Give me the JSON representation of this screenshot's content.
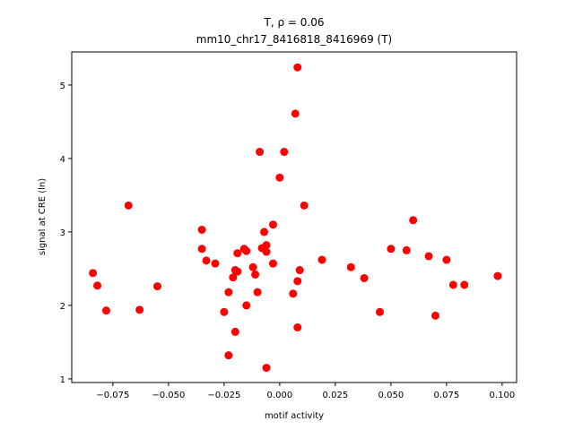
{
  "chart_data": {
    "type": "scatter",
    "title_line1": "T, ρ = 0.06",
    "title_line2": "mm10_chr17_8416818_8416969 (T)",
    "xlabel": "motif activity",
    "ylabel": "signal at CRE (ln)",
    "xlim": [
      -0.0935,
      0.1065
    ],
    "ylim": [
      0.95,
      5.45
    ],
    "x_ticks": [
      -0.075,
      -0.05,
      -0.025,
      0.0,
      0.025,
      0.05,
      0.075,
      0.1
    ],
    "x_tick_labels": [
      "−0.075",
      "−0.050",
      "−0.025",
      "0.000",
      "0.025",
      "0.050",
      "0.075",
      "0.100"
    ],
    "y_ticks": [
      1,
      2,
      3,
      4,
      5
    ],
    "y_tick_labels": [
      "1",
      "2",
      "3",
      "4",
      "5"
    ],
    "grid": false,
    "marker_color": "#ff0000",
    "points": [
      {
        "x": -0.084,
        "y": 2.44
      },
      {
        "x": -0.082,
        "y": 2.27
      },
      {
        "x": -0.078,
        "y": 1.93
      },
      {
        "x": -0.068,
        "y": 3.36
      },
      {
        "x": -0.063,
        "y": 1.94
      },
      {
        "x": -0.055,
        "y": 2.26
      },
      {
        "x": -0.035,
        "y": 3.03
      },
      {
        "x": -0.035,
        "y": 2.77
      },
      {
        "x": -0.033,
        "y": 2.61
      },
      {
        "x": -0.029,
        "y": 2.57
      },
      {
        "x": -0.025,
        "y": 1.91
      },
      {
        "x": -0.023,
        "y": 2.18
      },
      {
        "x": -0.023,
        "y": 1.32
      },
      {
        "x": -0.021,
        "y": 2.38
      },
      {
        "x": -0.02,
        "y": 1.64
      },
      {
        "x": -0.02,
        "y": 2.48
      },
      {
        "x": -0.019,
        "y": 2.71
      },
      {
        "x": -0.019,
        "y": 2.46
      },
      {
        "x": -0.016,
        "y": 2.77
      },
      {
        "x": -0.015,
        "y": 2.74
      },
      {
        "x": -0.015,
        "y": 2.0
      },
      {
        "x": -0.012,
        "y": 2.52
      },
      {
        "x": -0.011,
        "y": 2.42
      },
      {
        "x": -0.01,
        "y": 2.18
      },
      {
        "x": -0.009,
        "y": 4.09
      },
      {
        "x": -0.008,
        "y": 2.78
      },
      {
        "x": -0.007,
        "y": 3.0
      },
      {
        "x": -0.006,
        "y": 2.82
      },
      {
        "x": -0.006,
        "y": 2.73
      },
      {
        "x": -0.006,
        "y": 1.15
      },
      {
        "x": -0.003,
        "y": 3.1
      },
      {
        "x": -0.003,
        "y": 2.57
      },
      {
        "x": 0.0,
        "y": 3.74
      },
      {
        "x": 0.002,
        "y": 4.09
      },
      {
        "x": 0.006,
        "y": 2.16
      },
      {
        "x": 0.007,
        "y": 4.61
      },
      {
        "x": 0.008,
        "y": 5.24
      },
      {
        "x": 0.008,
        "y": 2.33
      },
      {
        "x": 0.008,
        "y": 1.7
      },
      {
        "x": 0.009,
        "y": 2.48
      },
      {
        "x": 0.011,
        "y": 3.36
      },
      {
        "x": 0.019,
        "y": 2.62
      },
      {
        "x": 0.032,
        "y": 2.52
      },
      {
        "x": 0.038,
        "y": 2.37
      },
      {
        "x": 0.045,
        "y": 1.91
      },
      {
        "x": 0.05,
        "y": 2.77
      },
      {
        "x": 0.057,
        "y": 2.75
      },
      {
        "x": 0.06,
        "y": 3.16
      },
      {
        "x": 0.067,
        "y": 2.67
      },
      {
        "x": 0.07,
        "y": 1.86
      },
      {
        "x": 0.075,
        "y": 2.62
      },
      {
        "x": 0.078,
        "y": 2.28
      },
      {
        "x": 0.083,
        "y": 2.28
      },
      {
        "x": 0.098,
        "y": 2.4
      }
    ]
  }
}
